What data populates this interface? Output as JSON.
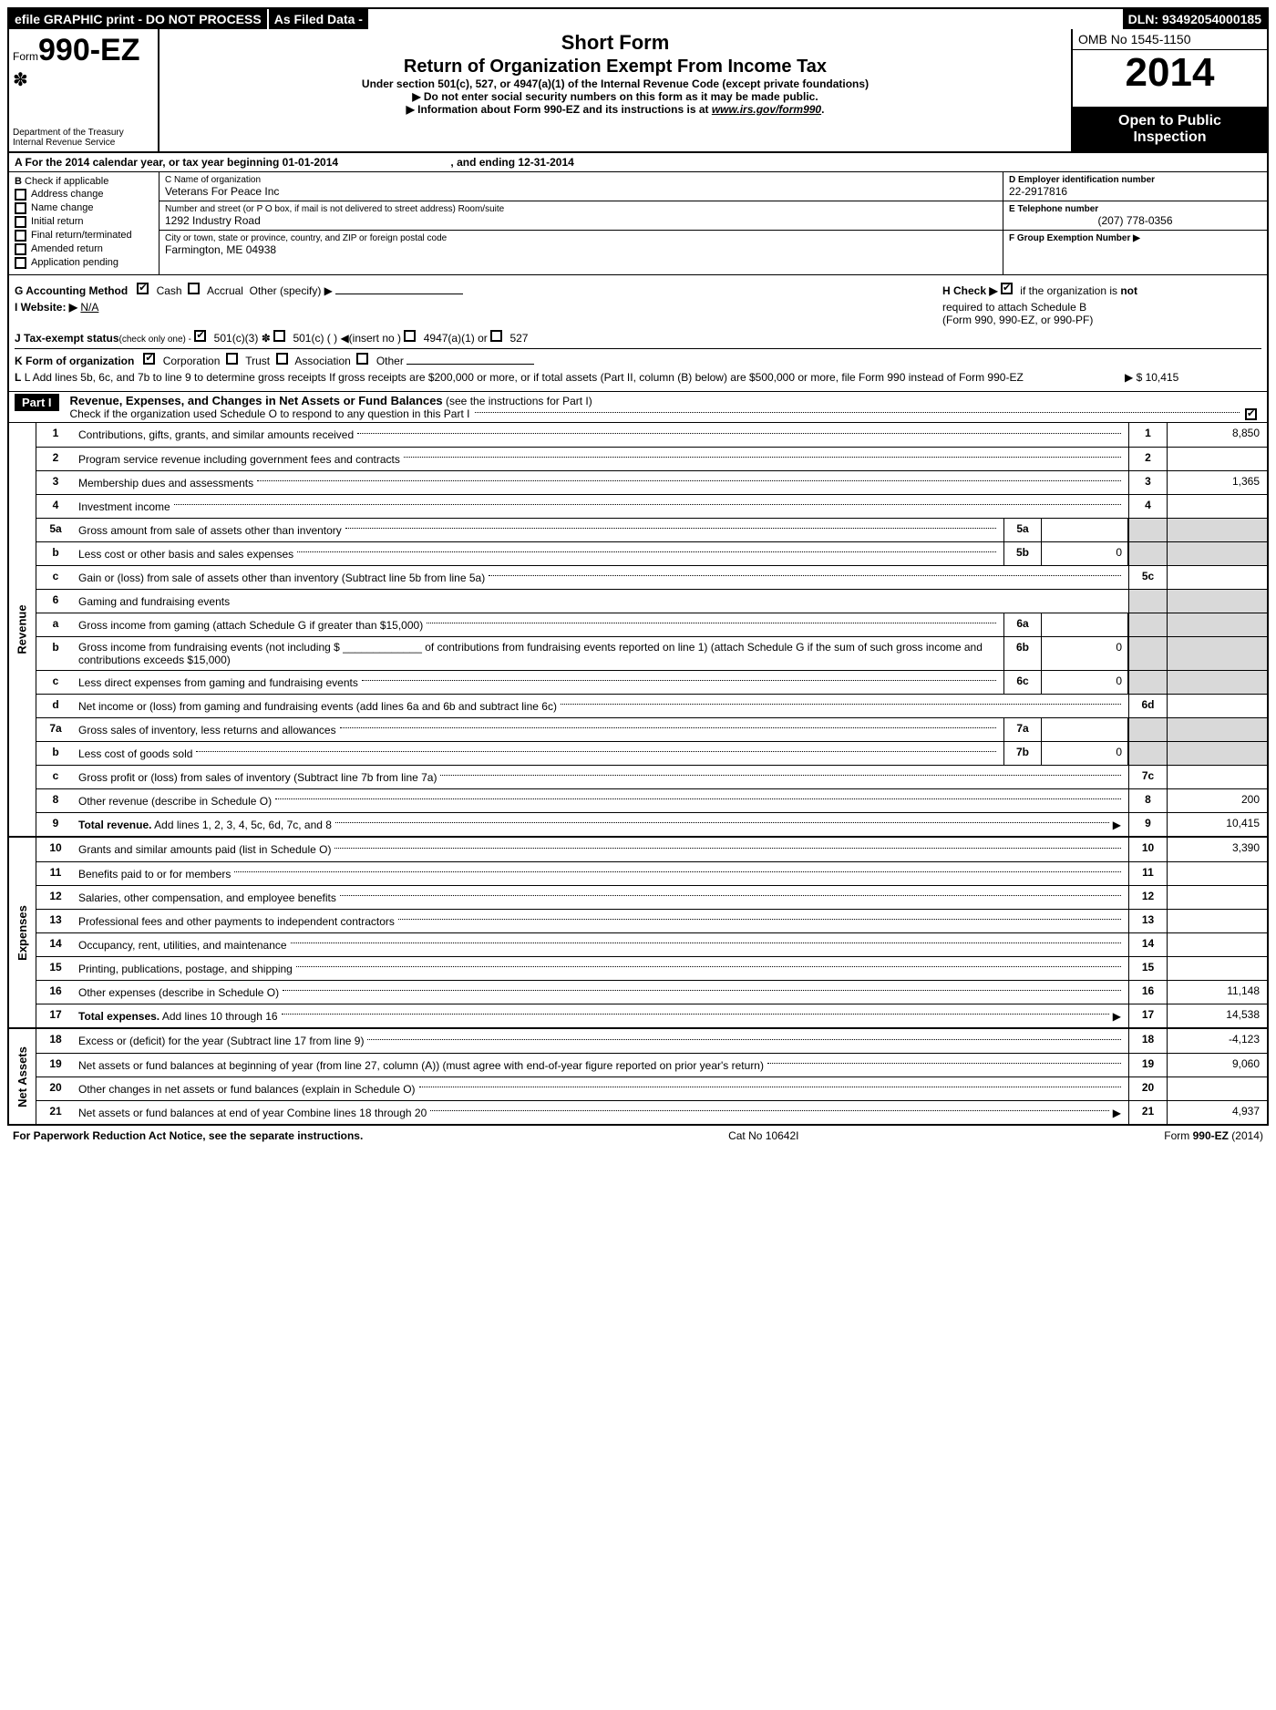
{
  "topbar": {
    "efile": "efile GRAPHIC print - DO NOT PROCESS",
    "asfiled": "As Filed Data -",
    "dln": "DLN: 93492054000185"
  },
  "header": {
    "form_prefix": "Form",
    "form_num": "990-EZ",
    "dept1": "Department of the Treasury",
    "dept2": "Internal Revenue Service",
    "short_form": "Short Form",
    "title": "Return of Organization Exempt From Income Tax",
    "subtitle": "Under section 501(c), 527, or 4947(a)(1) of the Internal Revenue Code (except private foundations)",
    "note1": "▶ Do not enter social security numbers on this form as it may be made public.",
    "note2_pre": "▶ Information about Form 990-EZ and its instructions is at ",
    "note2_link": "www.irs.gov/form990",
    "note2_post": ".",
    "omb": "OMB No 1545-1150",
    "year": "2014",
    "open1": "Open to Public",
    "open2": "Inspection"
  },
  "rowA": {
    "pre": "A  For the 2014 calendar year, or tax year beginning ",
    "begin": "01-01-2014",
    "mid": ", and ending ",
    "end": "12-31-2014"
  },
  "colB": {
    "head": "B",
    "headtxt": "Check if applicable",
    "items": [
      "Address change",
      "Name change",
      "Initial return",
      "Final return/terminated",
      "Amended return",
      "Application pending"
    ]
  },
  "colC": {
    "name_label": "C Name of organization",
    "name": "Veterans For Peace Inc",
    "addr_label": "Number and street (or P O box, if mail is not delivered to street address) Room/suite",
    "addr": "1292 Industry Road",
    "city_label": "City or town, state or province, country, and ZIP or foreign postal code",
    "city": "Farmington, ME  04938"
  },
  "colD": {
    "d_label": "D Employer identification number",
    "d_val": "22-2917816",
    "e_label": "E Telephone number",
    "e_val": "(207) 778-0356",
    "f_label": "F Group Exemption Number   ▶"
  },
  "infoG": {
    "g": "G Accounting Method",
    "cash": "Cash",
    "accrual": "Accrual",
    "other": "Other (specify) ▶",
    "h1": "H  Check ▶",
    "h2": "if the organization is ",
    "h3": "not",
    "h4": "required to attach Schedule B",
    "h5": "(Form 990, 990-EZ, or 990-PF)",
    "i": "I Website: ▶",
    "i_val": "N/A",
    "j": "J Tax-exempt status",
    "j_small": "(check only one) -",
    "j1": "501(c)(3)",
    "j2": "501(c) (    ) ◀(insert no )",
    "j3": "4947(a)(1) or",
    "j4": "527",
    "k": "K Form of organization",
    "k1": "Corporation",
    "k2": "Trust",
    "k3": "Association",
    "k4": "Other",
    "l": "L Add lines 5b, 6c, and 7b to line 9 to determine gross receipts  If gross receipts are $200,000 or more, or if total assets (Part II, column (B) below) are $500,000 or more, file Form 990 instead of Form 990-EZ",
    "l_val": "▶ $ 10,415"
  },
  "part1": {
    "head": "Part I",
    "title": "Revenue, Expenses, and Changes in Net Assets or Fund Balances",
    "title_paren": "(see the instructions for Part I)",
    "check": "Check if the organization used Schedule O to respond to any question in this Part I"
  },
  "sections": {
    "revenue": "Revenue",
    "expenses": "Expenses",
    "netassets": "Net Assets"
  },
  "lines": {
    "l1": {
      "n": "1",
      "d": "Contributions, gifts, grants, and similar amounts received",
      "r": "1",
      "v": "8,850"
    },
    "l2": {
      "n": "2",
      "d": "Program service revenue including government fees and contracts",
      "r": "2",
      "v": ""
    },
    "l3": {
      "n": "3",
      "d": "Membership dues and assessments",
      "r": "3",
      "v": "1,365"
    },
    "l4": {
      "n": "4",
      "d": "Investment income",
      "r": "4",
      "v": ""
    },
    "l5a": {
      "n": "5a",
      "d": "Gross amount from sale of assets other than inventory",
      "ib": "5a",
      "iv": ""
    },
    "l5b": {
      "n": "b",
      "d": "Less  cost or other basis and sales expenses",
      "ib": "5b",
      "iv": "0"
    },
    "l5c": {
      "n": "c",
      "d": "Gain or (loss) from sale of assets other than inventory (Subtract line 5b from line 5a)",
      "r": "5c",
      "v": ""
    },
    "l6": {
      "n": "6",
      "d": "Gaming and fundraising events"
    },
    "l6a": {
      "n": "a",
      "d": "Gross income from gaming (attach Schedule G if greater than $15,000)",
      "ib": "6a",
      "iv": ""
    },
    "l6b": {
      "n": "b",
      "d": "Gross income from fundraising events (not including $ _____________ of contributions from fundraising events reported on line 1) (attach Schedule G if the sum of such gross income and contributions exceeds $15,000)",
      "ib": "6b",
      "iv": "0"
    },
    "l6c": {
      "n": "c",
      "d": "Less  direct expenses from gaming and fundraising events",
      "ib": "6c",
      "iv": "0"
    },
    "l6d": {
      "n": "d",
      "d": "Net income or (loss) from gaming and fundraising events (add lines 6a and 6b and subtract line 6c)",
      "r": "6d",
      "v": ""
    },
    "l7a": {
      "n": "7a",
      "d": "Gross sales of inventory, less returns and allowances",
      "ib": "7a",
      "iv": ""
    },
    "l7b": {
      "n": "b",
      "d": "Less  cost of goods sold",
      "ib": "7b",
      "iv": "0"
    },
    "l7c": {
      "n": "c",
      "d": "Gross profit or (loss) from sales of inventory (Subtract line 7b from line 7a)",
      "r": "7c",
      "v": ""
    },
    "l8": {
      "n": "8",
      "d": "Other revenue (describe in Schedule O)",
      "r": "8",
      "v": "200"
    },
    "l9": {
      "n": "9",
      "d": "Total revenue. Add lines 1, 2, 3, 4, 5c, 6d, 7c, and 8",
      "r": "9",
      "v": "10,415",
      "arrow": true,
      "bold": true
    },
    "l10": {
      "n": "10",
      "d": "Grants and similar amounts paid (list in Schedule O)",
      "r": "10",
      "v": "3,390"
    },
    "l11": {
      "n": "11",
      "d": "Benefits paid to or for members",
      "r": "11",
      "v": ""
    },
    "l12": {
      "n": "12",
      "d": "Salaries, other compensation, and employee benefits",
      "r": "12",
      "v": ""
    },
    "l13": {
      "n": "13",
      "d": "Professional fees and other payments to independent contractors",
      "r": "13",
      "v": ""
    },
    "l14": {
      "n": "14",
      "d": "Occupancy, rent, utilities, and maintenance",
      "r": "14",
      "v": ""
    },
    "l15": {
      "n": "15",
      "d": "Printing, publications, postage, and shipping",
      "r": "15",
      "v": ""
    },
    "l16": {
      "n": "16",
      "d": "Other expenses (describe in Schedule O)",
      "r": "16",
      "v": "11,148"
    },
    "l17": {
      "n": "17",
      "d": "Total expenses. Add lines 10 through 16",
      "r": "17",
      "v": "14,538",
      "arrow": true,
      "bold": true
    },
    "l18": {
      "n": "18",
      "d": "Excess or (deficit) for the year (Subtract line 17 from line 9)",
      "r": "18",
      "v": "-4,123"
    },
    "l19": {
      "n": "19",
      "d": "Net assets or fund balances at beginning of year (from line 27, column (A)) (must agree with end-of-year figure reported on prior year's return)",
      "r": "19",
      "v": "9,060"
    },
    "l20": {
      "n": "20",
      "d": "Other changes in net assets or fund balances (explain in Schedule O)",
      "r": "20",
      "v": ""
    },
    "l21": {
      "n": "21",
      "d": "Net assets or fund balances at end of year Combine lines 18 through 20",
      "r": "21",
      "v": "4,937",
      "arrow": true
    }
  },
  "footer": {
    "left": "For Paperwork Reduction Act Notice, see the separate instructions.",
    "mid": "Cat No 10642I",
    "right": "Form 990-EZ (2014)"
  }
}
